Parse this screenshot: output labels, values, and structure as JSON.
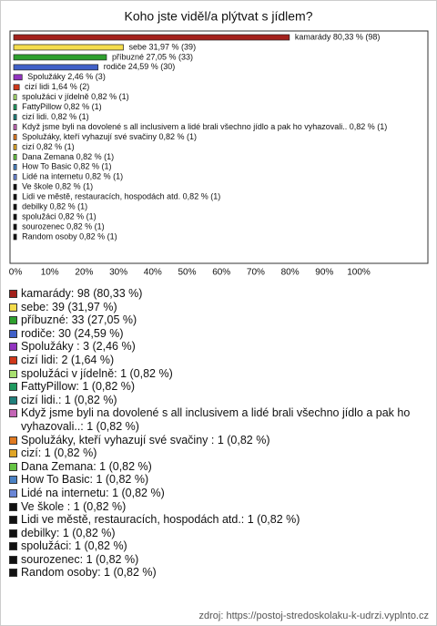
{
  "chart_data": {
    "type": "bar",
    "orientation": "horizontal",
    "title": "Koho jste viděl/a plýtvat s jídlem?",
    "values": [
      80.33,
      31.97,
      27.05,
      24.59,
      2.46,
      1.64,
      0.82,
      0.82,
      0.82,
      0.82,
      0.82,
      0.82,
      0.82,
      0.82,
      0.82,
      0.82,
      0.82,
      0.82,
      0.82,
      0.82,
      0.82
    ],
    "value_labels": [
      "kamarády 80,33 % (98)",
      "sebe 31,97 % (39)",
      "příbuzné 27,05 % (33)",
      "rodiče 24,59 % (30)",
      "Spolužáky  2,46 % (3)",
      "cizí lidi 1,64 % (2)",
      "spolužáci v jídelně 0,82 % (1)",
      "FattyPillow 0,82 % (1)",
      "cizí lidi. 0,82 % (1)",
      "Když jsme byli na dovolené s all inclusivem a lidé brali všechno jídlo a pak ho vyhazovali.. 0,82 % (1)",
      "Spolužáky, kteří vyhazují své svačiny  0,82 % (1)",
      "cizí 0,82 % (1)",
      "Dana Zemana 0,82 % (1)",
      "How To Basic 0,82 % (1)",
      "Lidé na internetu 0,82 % (1)",
      "Ve škole  0,82 % (1)",
      "Lidi ve městě, restauracích, hospodách atd. 0,82 % (1)",
      "debilky 0,82 % (1)",
      "spolužáci 0,82 % (1)",
      "sourozenec 0,82 % (1)",
      "Random osoby 0,82 % (1)"
    ],
    "colors": [
      "#a3201b",
      "#f4dc4c",
      "#2ea02e",
      "#4060c8",
      "#9234c0",
      "#d0381a",
      "#a8e070",
      "#1f9a60",
      "#20807c",
      "#c466b6",
      "#e07a22",
      "#e0a628",
      "#66c444",
      "#4a82c4",
      "#6a86d6",
      "#111111",
      "#111111",
      "#111111",
      "#111111",
      "#111111",
      "#111111"
    ],
    "legend_labels": [
      "kamarády: 98 (80,33 %)",
      "sebe: 39 (31,97 %)",
      "příbuzné: 33 (27,05 %)",
      "rodiče: 30 (24,59 %)",
      "Spolužáky : 3 (2,46 %)",
      "cizí lidi: 2 (1,64 %)",
      "spolužáci v jídelně: 1 (0,82 %)",
      "FattyPillow: 1 (0,82 %)",
      "cizí lidi.: 1 (0,82 %)",
      "Když jsme byli na dovolené s all inclusivem a lidé brali všechno jídlo a pak ho vyhazovali..: 1 (0,82 %)",
      "Spolužáky, kteří vyhazují své svačiny : 1 (0,82 %)",
      "cizí: 1 (0,82 %)",
      "Dana Zemana: 1 (0,82 %)",
      "How To Basic: 1 (0,82 %)",
      "Lidé na internetu: 1 (0,82 %)",
      "Ve škole : 1 (0,82 %)",
      "Lidi ve městě, restauracích, hospodách atd.: 1 (0,82 %)",
      "debilky: 1 (0,82 %)",
      "spolužáci: 1 (0,82 %)",
      "sourozenec: 1 (0,82 %)",
      "Random osoby: 1 (0,82 %)"
    ],
    "xlim": [
      0,
      100
    ],
    "xticks": [
      {
        "value": 0,
        "label": "0%"
      },
      {
        "value": 10,
        "label": "10%"
      },
      {
        "value": 20,
        "label": "20%"
      },
      {
        "value": 30,
        "label": "30%"
      },
      {
        "value": 40,
        "label": "40%"
      },
      {
        "value": 50,
        "label": "50%"
      },
      {
        "value": 60,
        "label": "60%"
      },
      {
        "value": 70,
        "label": "70%"
      },
      {
        "value": 80,
        "label": "80%"
      },
      {
        "value": 90,
        "label": "90%"
      },
      {
        "value": 100,
        "label": "100%"
      }
    ],
    "source": "zdroj: https://postoj-stredoskolaku-k-udrzi.vyplnto.cz"
  }
}
